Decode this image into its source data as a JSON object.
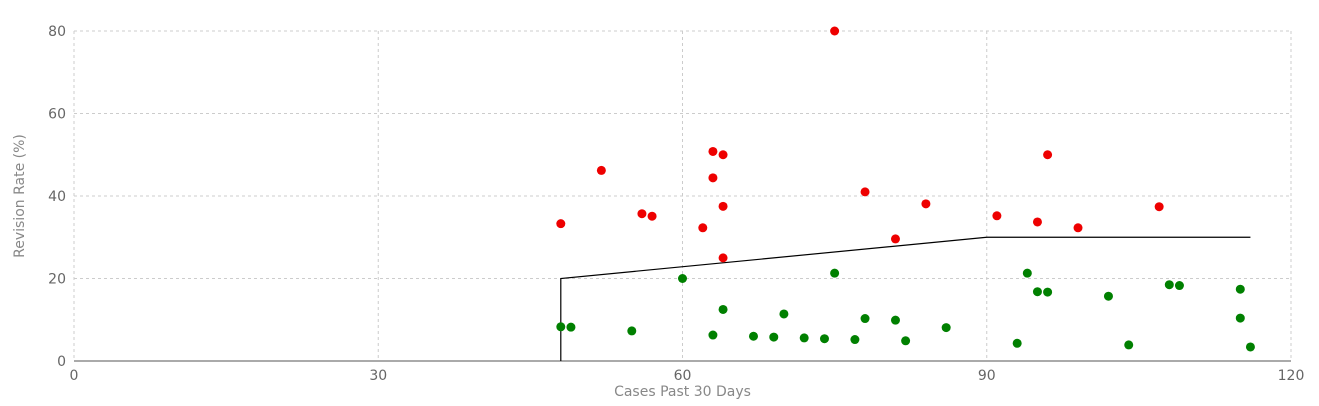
{
  "chart_data": {
    "type": "scatter",
    "xlabel": "Cases Past 30 Days",
    "ylabel": "Revision Rate (%)",
    "xlim": [
      0,
      120
    ],
    "ylim": [
      0,
      80
    ],
    "x_ticks": [
      0,
      30,
      60,
      90,
      120
    ],
    "y_ticks": [
      0,
      20,
      40,
      60,
      80
    ],
    "grid": true,
    "colors": {
      "above": "#ee0000",
      "below": "#008000",
      "threshold": "#000000",
      "grid": "#cccccc",
      "axis": "#555555"
    },
    "series": [
      {
        "color_key": "above",
        "points": [
          [
            48,
            33.3
          ],
          [
            52,
            46.2
          ],
          [
            56,
            35.7
          ],
          [
            57,
            35.1
          ],
          [
            62,
            32.3
          ],
          [
            63,
            50.8
          ],
          [
            63,
            44.4
          ],
          [
            64,
            50
          ],
          [
            64,
            37.5
          ],
          [
            64,
            25
          ],
          [
            75,
            80
          ],
          [
            78,
            41
          ],
          [
            81,
            29.6
          ],
          [
            84,
            38.1
          ],
          [
            91,
            35.2
          ],
          [
            95,
            33.7
          ],
          [
            96,
            50
          ],
          [
            99,
            32.3
          ],
          [
            107,
            37.4
          ]
        ]
      },
      {
        "color_key": "below",
        "points": [
          [
            48,
            8.3
          ],
          [
            49,
            8.2
          ],
          [
            55,
            7.3
          ],
          [
            60,
            20
          ],
          [
            63,
            6.3
          ],
          [
            64,
            12.5
          ],
          [
            67,
            6
          ],
          [
            69,
            5.8
          ],
          [
            70,
            11.4
          ],
          [
            72,
            5.6
          ],
          [
            74,
            5.4
          ],
          [
            75,
            21.3
          ],
          [
            77,
            5.2
          ],
          [
            78,
            10.3
          ],
          [
            81,
            9.9
          ],
          [
            82,
            4.9
          ],
          [
            86,
            8.1
          ],
          [
            93,
            4.3
          ],
          [
            94,
            21.3
          ],
          [
            95,
            16.8
          ],
          [
            96,
            16.7
          ],
          [
            102,
            15.7
          ],
          [
            104,
            3.9
          ],
          [
            108,
            18.5
          ],
          [
            109,
            18.3
          ],
          [
            115,
            17.4
          ],
          [
            115,
            10.4
          ],
          [
            116,
            3.4
          ]
        ]
      }
    ],
    "threshold_line": [
      [
        48,
        0
      ],
      [
        48,
        20
      ],
      [
        90,
        30
      ],
      [
        116,
        30
      ]
    ]
  }
}
